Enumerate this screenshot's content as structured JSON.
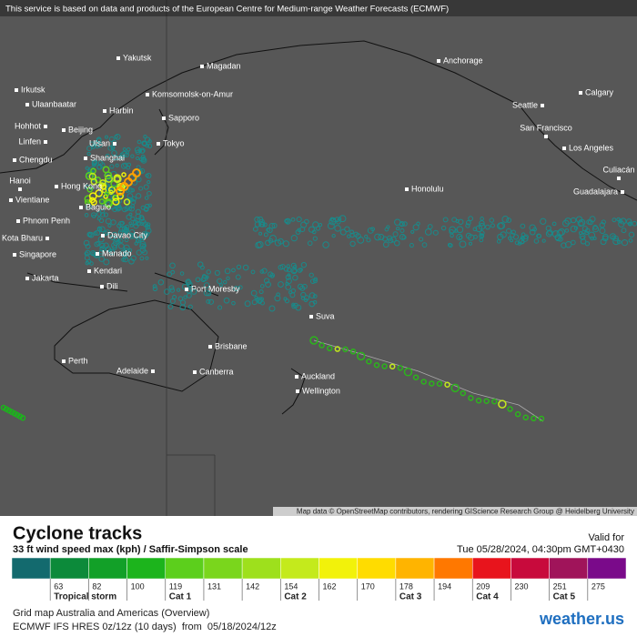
{
  "notice": "This service is based on data and products of the European Centre for Medium-range Weather Forecasts (ECMWF)",
  "cities": [
    "Yakutsk",
    "Magadan",
    "Anchorage",
    "Irkutsk",
    "Ulaanbaatar",
    "Komsomolsk-on-Amur",
    "Harbin",
    "Sapporo",
    "Seattle",
    "Calgary",
    "Hohhot",
    "Beijing",
    "San Francisco",
    "Linfen",
    "Ulsan",
    "Tokyo",
    "Los Angeles",
    "Chengdu",
    "Shanghai",
    "Culiacán",
    "Hanoi",
    "Hong Kong",
    "Honolulu",
    "Guadalajara",
    "Vientiane",
    "Baguio",
    "Phnom Penh",
    "Davao City",
    "Kota Bharu",
    "Manado",
    "Singapore",
    "Kendari",
    "Jakarta",
    "Dili",
    "Port Moresby",
    "Suva",
    "Brisbane",
    "Perth",
    "Adelaide",
    "Canberra",
    "Auckland",
    "Wellington"
  ],
  "attribution": "Map data © OpenStreetMap contributors, rendering GIScience Research Group @ Heidelberg University",
  "legend": {
    "title": "Cyclone tracks",
    "subtitle": "33 ft wind speed max (kph) / Saffir-Simpson scale",
    "valid_label": "Valid for",
    "valid_time": "Tue 05/28/2024, 04:30pm GMT+0430",
    "colors": [
      "#136a6e",
      "#0c8a3a",
      "#12a028",
      "#1cb41c",
      "#5ccf1c",
      "#7ad61c",
      "#9ee01c",
      "#c4ea1c",
      "#f2f20a",
      "#ffdc00",
      "#ffb400",
      "#ff7800",
      "#e8141c",
      "#c80a3c",
      "#a0145a",
      "#7a0a8a"
    ],
    "ticks": [
      "63",
      "82",
      "100",
      "119",
      "131",
      "142",
      "154",
      "162",
      "170",
      "178",
      "194",
      "209",
      "230",
      "251",
      "275"
    ],
    "categories": [
      "Tropical storm",
      "Cat 1",
      "Cat 2",
      "Cat 3",
      "Cat 4",
      "Cat 5"
    ]
  },
  "footer": {
    "line1": "Grid map Australia and Americas (Overview)",
    "line2": "ECMWF IFS HRES 0z/12z (10 days)  from  05/18/2024/12z",
    "logo": "weather.us"
  }
}
